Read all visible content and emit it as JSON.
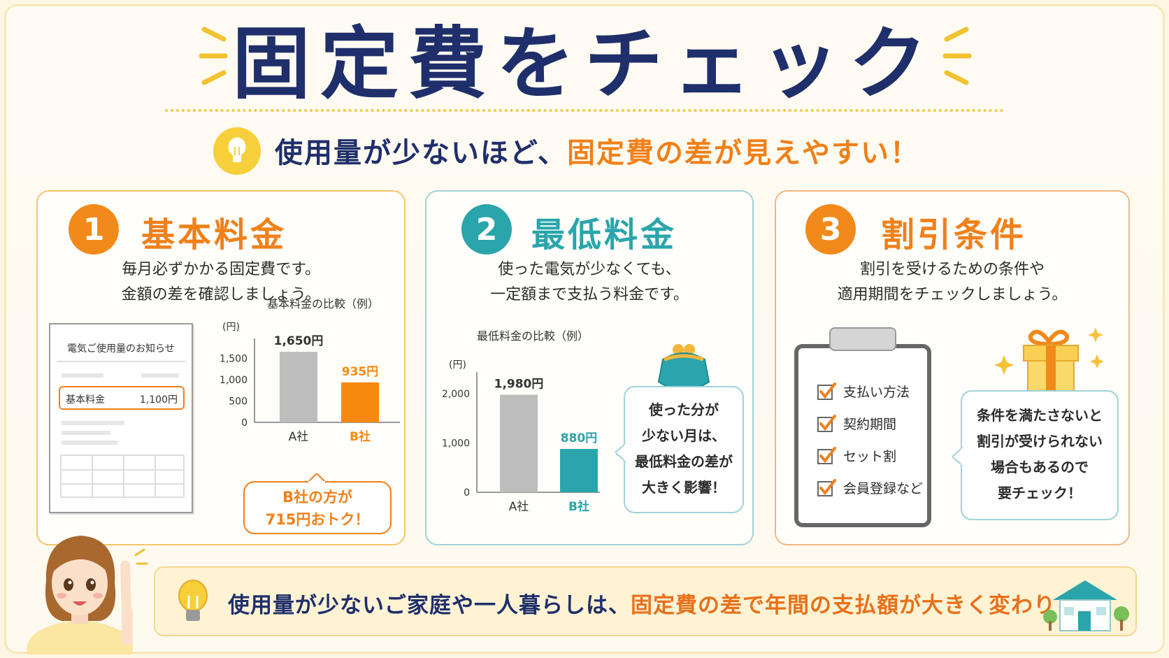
{
  "title": "固定費をチェック",
  "subtitle": {
    "main": "使用量が少ないほど、",
    "highlight": "固定費の差が見えやすい！"
  },
  "colors": {
    "navy": "#1f2f6b",
    "orange": "#f0801a",
    "teal": "#2aa5ab",
    "gray": "#bdbdbd",
    "yellow": "#f7cf3a"
  },
  "cards": [
    {
      "number": "1",
      "heading": "基本料金",
      "desc": [
        "毎月必ずかかる固定費です。",
        "金額の差を確認しましょう。"
      ],
      "bill": {
        "title": "電気ご使用量のお知らせ",
        "row_label": "基本料金",
        "row_value": "1,100円"
      },
      "chart_data": {
        "type": "bar",
        "title": "基本料金の比較（例）",
        "ylabel": "(円)",
        "categories": [
          "A社",
          "B社"
        ],
        "values": [
          1650,
          935
        ],
        "value_labels": [
          "1,650円",
          "935円"
        ],
        "yticks": [
          "1,500",
          "1,000",
          "500",
          "0"
        ],
        "ylim": [
          0,
          1800
        ],
        "colors": [
          "#bdbdbd",
          "#f7890f"
        ]
      },
      "bubble": [
        "B社の方が",
        "715円おトク！"
      ]
    },
    {
      "number": "2",
      "heading": "最低料金",
      "desc": [
        "使った電気が少なくても、",
        "一定額まで支払う料金です。"
      ],
      "chart_data": {
        "type": "bar",
        "title": "最低料金の比較（例）",
        "ylabel": "(円)",
        "categories": [
          "A社",
          "B社"
        ],
        "values": [
          1980,
          880
        ],
        "value_labels": [
          "1,980円",
          "880円"
        ],
        "yticks": [
          "2,000",
          "1,000",
          "0"
        ],
        "ylim": [
          0,
          2300
        ],
        "colors": [
          "#bdbdbd",
          "#2aa5ab"
        ]
      },
      "bubble": [
        "使った分が",
        "少ない月は、",
        "最低料金の差が",
        "大きく影響！"
      ]
    },
    {
      "number": "3",
      "heading": "割引条件",
      "desc": [
        "割引を受けるための条件や",
        "適用期間をチェックしましょう。"
      ],
      "checklist": [
        "支払い方法",
        "契約期間",
        "セット割",
        "会員登録など"
      ],
      "bubble": [
        "条件を満たさないと",
        "割引が受けられない",
        "場合もあるので",
        "要チェック！"
      ]
    }
  ],
  "bottom": {
    "main": "使用量が少ないご家庭や一人暮らしは、",
    "highlight": "固定費の差で年間の支払額が大きく変わります！"
  }
}
